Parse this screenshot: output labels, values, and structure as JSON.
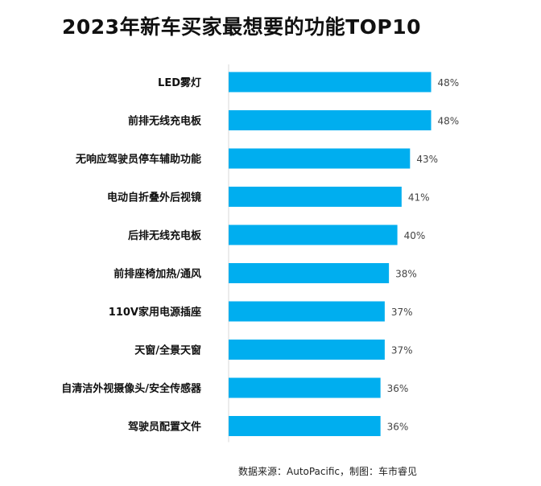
{
  "chart_data": {
    "type": "bar",
    "orientation": "horizontal",
    "title": "2023年新车买家最想要的功能TOP10",
    "categories": [
      "LED雾灯",
      "前排无线充电板",
      "无响应驾驶员停车辅助功能",
      "电动自折叠外后视镜",
      "后排无线充电板",
      "前排座椅加热/通风",
      "110V家用电源插座",
      "天窗/全景天窗",
      "自清洁外视摄像头/安全传感器",
      "驾驶员配置文件"
    ],
    "values": [
      48,
      48,
      43,
      41,
      40,
      38,
      37,
      37,
      36,
      36
    ],
    "value_labels": [
      "48%",
      "48%",
      "43%",
      "41%",
      "40%",
      "38%",
      "37%",
      "37%",
      "36%",
      "36%"
    ],
    "xlim": [
      0,
      55
    ],
    "bar_color": "#00AEEF",
    "grid": false,
    "legend": "none"
  },
  "source": "数据来源：AutoPacific，制图：车市睿见"
}
